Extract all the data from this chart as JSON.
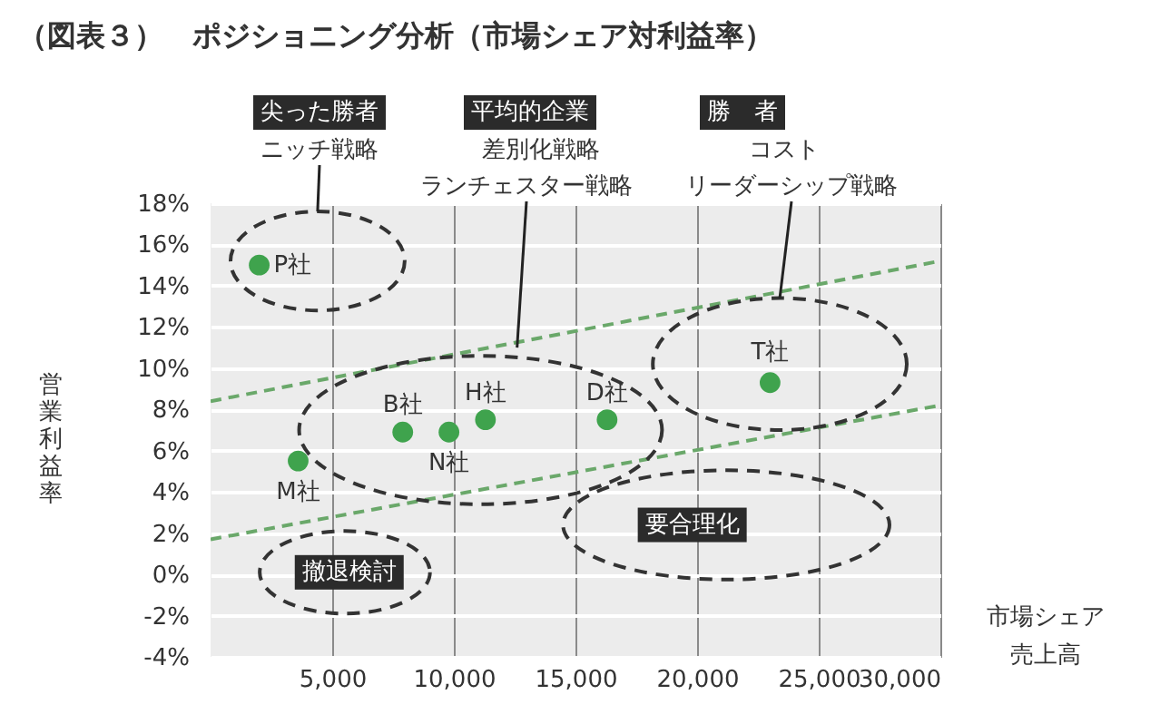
{
  "chart_data": {
    "type": "scatter",
    "title": "（図表３）　ポジショニング分析（市場シェア対利益率）",
    "xlabel": "市場シェア売上高",
    "ylabel": "営業利益率",
    "series": [
      {
        "type": "scatter",
        "marker": "circle",
        "color": "#3fa34d",
        "x": [
          2000,
          3600,
          7900,
          9800,
          11300,
          16300,
          23000
        ],
        "values": [
          15,
          5.5,
          6.9,
          6.9,
          7.5,
          7.5,
          9.3
        ]
      },
      {
        "type": "line",
        "color": "#6aa86a",
        "line_style": "dashed",
        "x": [
          0,
          30000
        ],
        "values": [
          8.4,
          15.2
        ]
      },
      {
        "type": "line",
        "color": "#6aa86a",
        "line_style": "dashed",
        "x": [
          0,
          30000
        ],
        "values": [
          1.7,
          8.2
        ]
      }
    ],
    "annotations": [
      "尖った勝者",
      "ニッチ戦略",
      "平均的企業",
      "差別化戦略",
      {
        "text": "ランチェスター戦略",
        "x": 12600,
        "y": 11.0
      },
      "勝　者",
      "コスト",
      {
        "text": "リーダーシップ戦略",
        "x": 23400,
        "y": 13.4
      },
      "撤退検討",
      "要合理化",
      {
        "text": "P社",
        "x": 2000,
        "y": 15
      },
      {
        "text": "M社",
        "x": 3600,
        "y": 5.5
      },
      {
        "text": "B社",
        "x": 7900,
        "y": 6.9
      },
      {
        "text": "N社",
        "x": 9800,
        "y": 6.9
      },
      {
        "text": "H社",
        "x": 11300,
        "y": 7.5
      },
      {
        "text": "D社",
        "x": 16300,
        "y": 7.5
      },
      {
        "text": "T社",
        "x": 23000,
        "y": 9.3
      }
    ],
    "xlim": [
      0,
      30000
    ],
    "xticks": [
      {
        "value": 5000,
        "label": "5,000"
      },
      {
        "value": 10000,
        "label": "10,000"
      },
      {
        "value": 15000,
        "label": "15,000"
      },
      {
        "value": 20000,
        "label": "20,000"
      },
      {
        "value": 25000,
        "label": "25,000"
      },
      {
        "value": 30000,
        "label": "30,000"
      }
    ],
    "ylim": [
      -4,
      18
    ],
    "yticks": [
      {
        "value": -4,
        "label": "-4%"
      },
      {
        "value": -2,
        "label": "-2%"
      },
      {
        "value": 0,
        "label": "0%"
      },
      {
        "value": 2,
        "label": "2%"
      },
      {
        "value": 4,
        "label": "4%"
      },
      {
        "value": 6,
        "label": "6%"
      },
      {
        "value": 8,
        "label": "8%"
      },
      {
        "value": 10,
        "label": "10%"
      },
      {
        "value": 12,
        "label": "12%"
      },
      {
        "value": 14,
        "label": "14%"
      },
      {
        "value": 16,
        "label": "16%"
      },
      {
        "value": 18,
        "label": "18%"
      }
    ],
    "grid": true
  }
}
